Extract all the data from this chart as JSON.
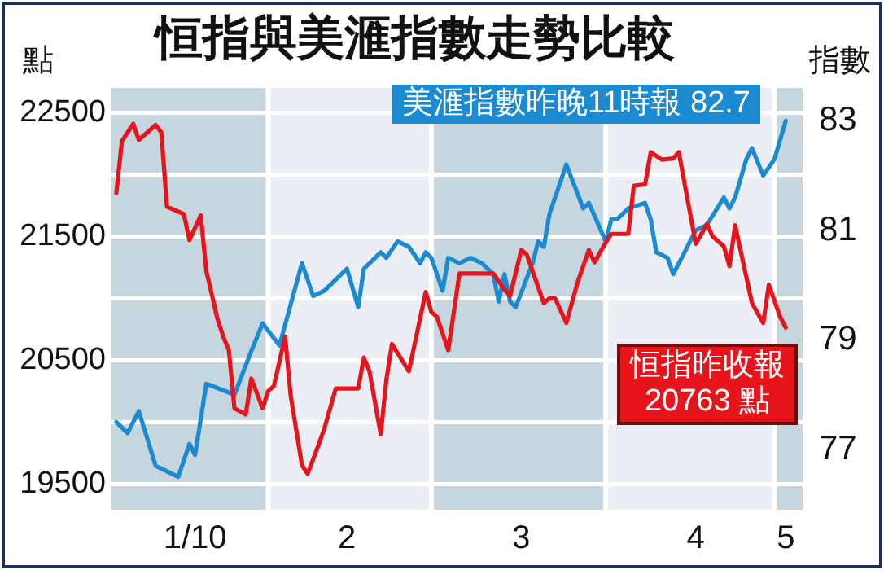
{
  "chart_data": {
    "type": "line",
    "title": "恒指與美滙指數走勢比較",
    "ylabel": "點",
    "y2label": "指數",
    "annotations": [
      "美滙指數昨晚11時報 82.7",
      "恒指昨收報\n20763 點"
    ],
    "series": [
      {
        "color": "#e8141c",
        "x": [
          "--01-05",
          "--01-06",
          "--01-08",
          "--01-09",
          "--01-10",
          "--01-12",
          "--01-13",
          "--01-14",
          "--01-17",
          "--01-18",
          "--01-20",
          "--01-21",
          "--01-23",
          "--01-24",
          "--01-25",
          "--01-26",
          "--01-28",
          "--01-29",
          "--01-31",
          "--02-01",
          "--02-02",
          "--02-04",
          "--02-05",
          "--02-07",
          "--02-08",
          "--02-10",
          "--02-11",
          "--02-13",
          "--02-17",
          "--02-18",
          "--02-19",
          "--02-21",
          "--02-22",
          "--02-23",
          "--02-26",
          "--02-29",
          "--03-01",
          "--03-02",
          "--03-04",
          "--03-06",
          "--03-12",
          "--03-14",
          "--03-15",
          "--03-17",
          "--03-18",
          "--03-21",
          "--03-22",
          "--03-23",
          "--03-25",
          "--03-27",
          "--03-29",
          "--03-30",
          "--04-01",
          "--04-02",
          "--04-05",
          "--04-06",
          "--04-08",
          "--04-09",
          "--04-11",
          "--04-13",
          "--04-14",
          "--04-17",
          "--04-19",
          "--04-20",
          "--04-22",
          "--04-23",
          "--04-24",
          "--04-27",
          "--04-29",
          "--04-30",
          "--05-02",
          "--05-03"
        ],
        "values": [
          21850,
          22270,
          22410,
          22280,
          22320,
          22400,
          22340,
          21740,
          21680,
          21470,
          21670,
          21220,
          20830,
          20690,
          20580,
          20110,
          20060,
          20350,
          20110,
          20250,
          20290,
          20690,
          20210,
          19650,
          19580,
          19820,
          19950,
          20270,
          20270,
          20520,
          20410,
          19900,
          20340,
          20630,
          20410,
          21050,
          20890,
          20850,
          20580,
          21200,
          21200,
          21070,
          21020,
          21390,
          21350,
          20960,
          21000,
          21000,
          20800,
          21130,
          21390,
          21290,
          21450,
          21520,
          21520,
          21910,
          21920,
          22180,
          22120,
          22130,
          22180,
          21440,
          21600,
          21500,
          21420,
          21260,
          21590,
          20960,
          20800,
          21110,
          20850,
          20763
        ]
      },
      {
        "color": "#1b8ad0",
        "axis": "y2",
        "x": [
          "--01-05",
          "--01-07",
          "--01-09",
          "--01-12",
          "--01-16",
          "--01-18",
          "--01-19",
          "--01-21",
          "--01-26",
          "--01-29",
          "--01-31",
          "--02-03",
          "--02-07",
          "--02-09",
          "--02-11",
          "--02-12",
          "--02-15",
          "--02-17",
          "--02-18",
          "--02-19",
          "--02-21",
          "--02-22",
          "--02-24",
          "--02-26",
          "--02-28",
          "--02-29",
          "--03-01",
          "--03-03",
          "--03-04",
          "--03-06",
          "--03-08",
          "--03-10",
          "--03-12",
          "--03-13",
          "--03-14",
          "--03-15",
          "--03-16",
          "--03-19",
          "--03-20",
          "--03-21",
          "--03-22",
          "--03-25",
          "--03-28",
          "--03-29",
          "--04-01",
          "--04-02",
          "--04-03",
          "--04-05",
          "--04-08",
          "--04-09",
          "--04-10",
          "--04-12",
          "--04-13",
          "--04-15",
          "--04-17",
          "--04-19",
          "--04-22",
          "--04-23",
          "--04-24",
          "--04-26",
          "--04-27",
          "--04-29",
          "--05-01",
          "--05-03"
        ],
        "values": [
          77.5,
          77.3,
          77.7,
          76.7,
          76.5,
          77.1,
          76.9,
          78.2,
          78,
          78.8,
          79.3,
          78.9,
          80.4,
          79.8,
          79.9,
          80,
          80.3,
          79.6,
          80.3,
          80.4,
          80.6,
          80.5,
          80.8,
          80.7,
          80.4,
          80.6,
          80.5,
          79.9,
          80.5,
          80.4,
          80.5,
          80.4,
          80.2,
          79.7,
          80.2,
          79.7,
          79.6,
          80.4,
          80.8,
          80.7,
          81.3,
          82.2,
          81.4,
          81.5,
          80.8,
          81.2,
          81.2,
          81.4,
          81.5,
          81.2,
          80.6,
          80.5,
          80.2,
          80.6,
          81,
          81.1,
          81.6,
          81.4,
          81.6,
          82.3,
          82.5,
          82,
          82.3,
          83
        ]
      }
    ],
    "xlim": [
      "--01-04",
      "--05-06"
    ],
    "xticks": [
      {
        "value": "--01-19",
        "label": "1/10"
      },
      {
        "value": "--02-15",
        "label": "2"
      },
      {
        "value": "--03-17",
        "label": "3"
      },
      {
        "value": "--04-17",
        "label": "4"
      },
      {
        "value": "--05-03",
        "label": "5"
      }
    ],
    "ylim": [
      19290,
      22700
    ],
    "yticks": [
      19500,
      {
        "value": 20000,
        "label": null
      },
      20500,
      {
        "value": 21000,
        "label": null
      },
      21500,
      {
        "value": 22000,
        "label": null
      },
      22500
    ],
    "y2lim": [
      75.9,
      83.6
    ],
    "y2ticks": [
      77,
      79,
      81,
      83
    ],
    "bands": [
      {
        "axis": "x",
        "from": "--01-04",
        "to": "--02-01",
        "color": "#c6d6de"
      },
      {
        "axis": "x",
        "from": "--02-01",
        "to": "--03-01",
        "color": "#eceef6"
      },
      {
        "axis": "x",
        "from": "--03-01",
        "to": "--04-01",
        "color": "#c6d6de"
      },
      {
        "axis": "x",
        "from": "--04-01",
        "to": "--05-01",
        "color": "#eceef6"
      },
      {
        "axis": "x",
        "from": "--05-01",
        "to": "--05-06",
        "color": "#c6d6de"
      }
    ],
    "grid": "y",
    "legend": false,
    "marker": "none",
    "line_style": "solid"
  }
}
